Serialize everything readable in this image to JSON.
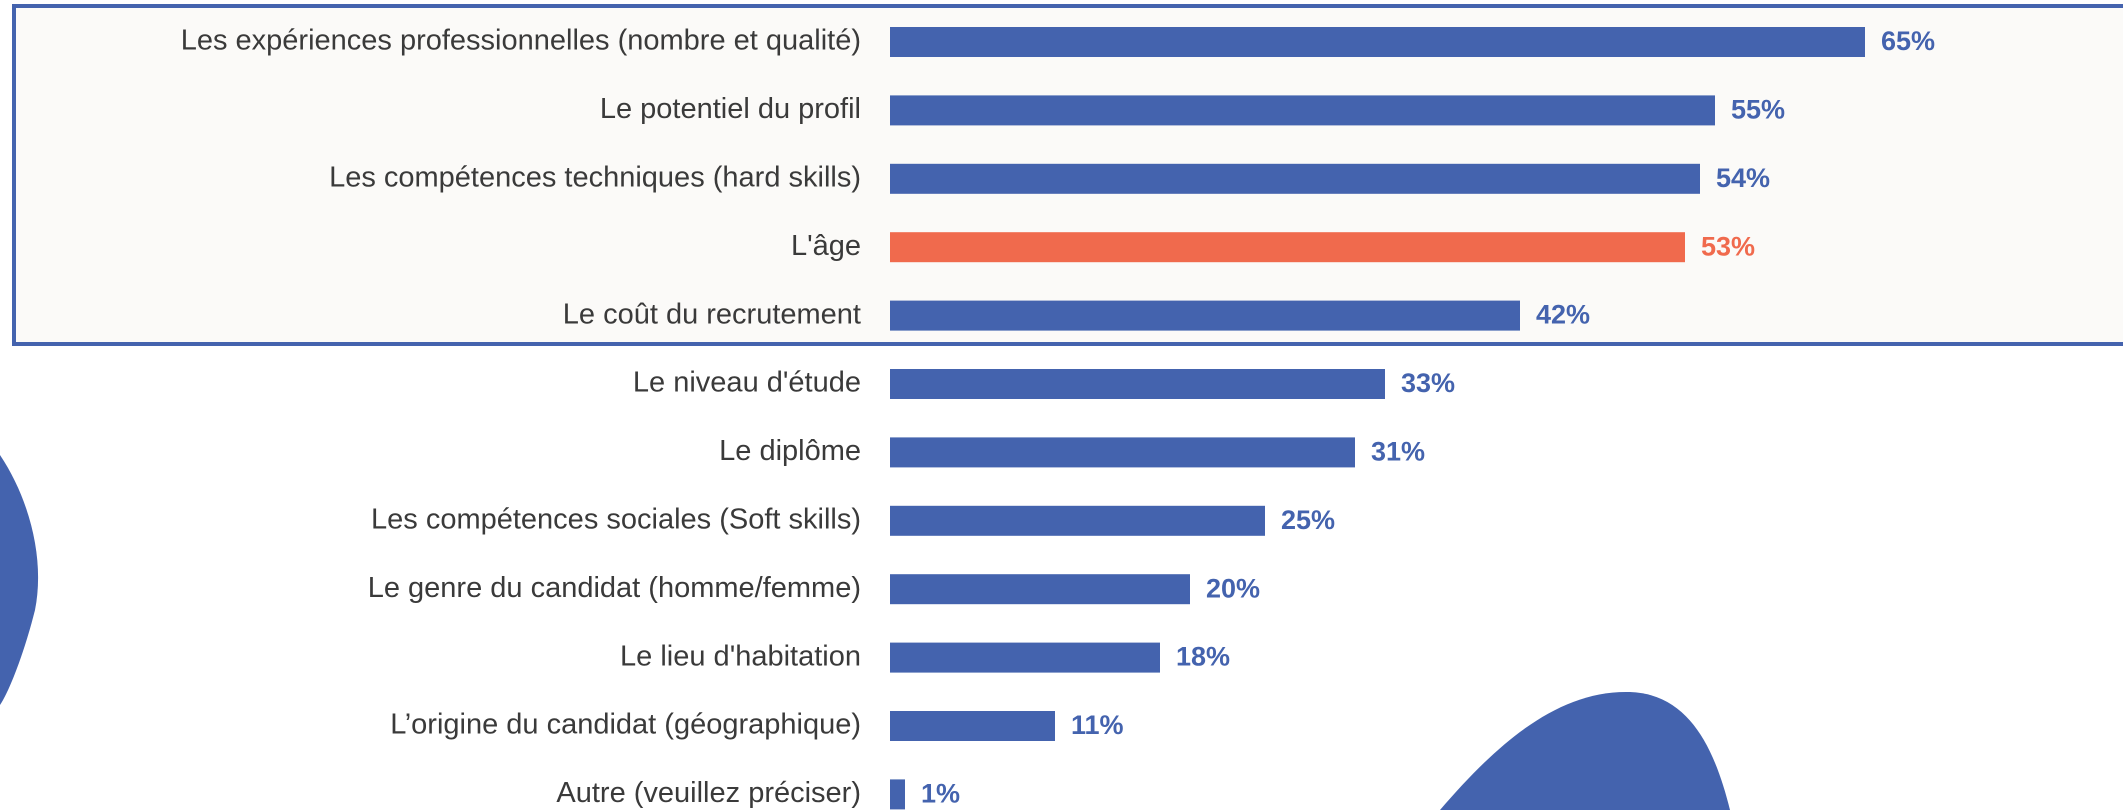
{
  "chart_data": {
    "type": "bar",
    "orientation": "horizontal",
    "categories": [
      "Les expériences professionnelles (nombre et qualité)",
      "Le potentiel du profil",
      "Les compétences techniques (hard skills)",
      "L'âge",
      "Le coût du recrutement",
      "Le niveau d'étude",
      "Le diplôme",
      "Les compétences sociales (Soft skills)",
      "Le genre du candidat (homme/femme)",
      "Le lieu d'habitation",
      "L’origine du candidat (géographique)",
      "Autre (veuillez préciser)"
    ],
    "values": [
      65,
      55,
      54,
      53,
      42,
      33,
      31,
      25,
      20,
      18,
      11,
      1
    ],
    "value_labels": [
      "65%",
      "55%",
      "54%",
      "53%",
      "42%",
      "33%",
      "31%",
      "25%",
      "20%",
      "18%",
      "11%",
      "1%"
    ],
    "colors": [
      "#4463ae",
      "#4463ae",
      "#4463ae",
      "#f06a4d",
      "#4463ae",
      "#4463ae",
      "#4463ae",
      "#4463ae",
      "#4463ae",
      "#4463ae",
      "#4463ae",
      "#4463ae"
    ]
  }
}
